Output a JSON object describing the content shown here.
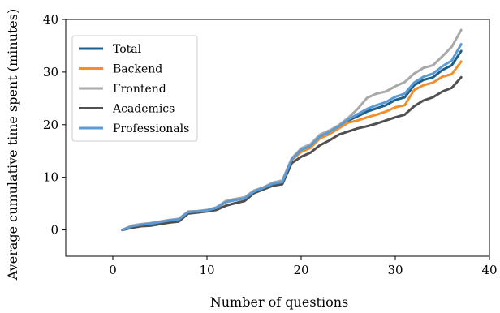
{
  "chart_data": {
    "type": "line",
    "xlabel": "Number of questions",
    "ylabel": "Average cumulative time spent (minutes)",
    "xlim": [
      -5,
      40
    ],
    "ylim": [
      -5,
      40
    ],
    "xticks": [
      0,
      10,
      20,
      30,
      40
    ],
    "yticks": [
      0,
      10,
      20,
      30,
      40
    ],
    "grid": false,
    "legend_position": "top-left",
    "x": [
      1,
      2,
      3,
      4,
      5,
      6,
      7,
      8,
      9,
      10,
      11,
      12,
      13,
      14,
      15,
      16,
      17,
      18,
      19,
      20,
      21,
      22,
      23,
      24,
      25,
      26,
      27,
      28,
      29,
      30,
      31,
      32,
      33,
      34,
      35,
      36,
      37
    ],
    "series": [
      {
        "name": "Total",
        "color": "#1f5f8b",
        "values": [
          0.0,
          0.7,
          1.0,
          1.2,
          1.5,
          1.8,
          2.0,
          3.4,
          3.5,
          3.7,
          4.2,
          5.3,
          5.7,
          6.0,
          7.3,
          8.0,
          8.8,
          9.1,
          13.4,
          15.0,
          15.8,
          17.6,
          18.4,
          19.4,
          20.8,
          21.6,
          22.5,
          23.1,
          23.7,
          24.7,
          25.2,
          27.5,
          28.5,
          29.0,
          30.4,
          31.3,
          34.0
        ]
      },
      {
        "name": "Backend",
        "color": "#f28e2b",
        "values": [
          0.0,
          0.7,
          1.0,
          1.2,
          1.5,
          1.8,
          2.0,
          3.4,
          3.5,
          3.7,
          4.2,
          5.3,
          5.7,
          6.0,
          7.2,
          7.9,
          8.7,
          9.0,
          13.3,
          14.8,
          15.6,
          17.4,
          18.2,
          19.3,
          20.4,
          20.8,
          21.4,
          21.9,
          22.5,
          23.3,
          23.7,
          26.6,
          27.5,
          28.0,
          29.1,
          29.6,
          32.0
        ]
      },
      {
        "name": "Frontend",
        "color": "#a9a9a9",
        "values": [
          0.0,
          0.8,
          1.1,
          1.3,
          1.6,
          1.9,
          2.1,
          3.5,
          3.6,
          3.8,
          4.3,
          5.5,
          5.9,
          6.2,
          7.5,
          8.1,
          9.0,
          9.4,
          13.6,
          15.5,
          16.3,
          18.1,
          18.9,
          19.9,
          21.3,
          23.0,
          25.1,
          25.9,
          26.3,
          27.3,
          28.1,
          29.7,
          30.8,
          31.3,
          33.0,
          34.8,
          38.0
        ]
      },
      {
        "name": "Academics",
        "color": "#505050",
        "values": [
          0.0,
          0.4,
          0.7,
          0.8,
          1.1,
          1.4,
          1.6,
          3.1,
          3.3,
          3.5,
          3.8,
          4.6,
          5.1,
          5.5,
          7.0,
          7.7,
          8.4,
          8.7,
          12.7,
          13.9,
          14.7,
          16.1,
          17.0,
          18.1,
          18.7,
          19.3,
          19.7,
          20.2,
          20.8,
          21.4,
          21.9,
          23.5,
          24.6,
          25.2,
          26.3,
          27.0,
          29.0
        ]
      },
      {
        "name": "Professionals",
        "color": "#5b9bd5",
        "values": [
          0.0,
          0.7,
          1.0,
          1.2,
          1.5,
          1.8,
          2.0,
          3.4,
          3.5,
          3.7,
          4.2,
          5.3,
          5.7,
          6.0,
          7.3,
          8.0,
          8.8,
          9.1,
          13.4,
          15.2,
          16.0,
          17.8,
          18.6,
          19.7,
          21.0,
          22.0,
          23.0,
          23.7,
          24.3,
          25.3,
          25.9,
          28.0,
          29.1,
          29.7,
          31.1,
          32.2,
          35.3
        ]
      }
    ]
  }
}
